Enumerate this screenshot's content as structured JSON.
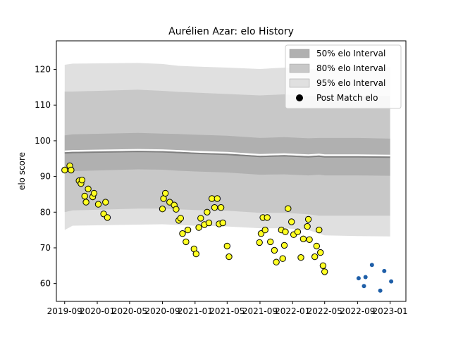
{
  "chart_data": {
    "type": "line",
    "title": "Aurélien Azar: elo History",
    "xlabel": "",
    "ylabel": "elo score",
    "xlim": [
      "2019-08-01",
      "2023-03-01"
    ],
    "ylim": [
      55,
      128
    ],
    "x_ticks": [
      "2019-09",
      "2020-01",
      "2020-05",
      "2020-09",
      "2021-01",
      "2021-05",
      "2021-09",
      "2022-01",
      "2022-05",
      "2022-09",
      "2023-01"
    ],
    "y_ticks": [
      60,
      70,
      80,
      90,
      100,
      110,
      120
    ],
    "grid": false,
    "legend_position": "top-right",
    "legend": [
      {
        "label": "50% elo Interval",
        "color": "#b0b0b0"
      },
      {
        "label": "80% elo Interval",
        "color": "#c8c8c8"
      },
      {
        "label": "95% elo Interval",
        "color": "#e0e0e0"
      },
      {
        "label": "Post Match elo",
        "color": "#000000"
      }
    ],
    "colors": {
      "band50": "#b0b0b0",
      "band80": "#c8c8c8",
      "band95": "#e0e0e0",
      "mean_line": "#808080",
      "post_match_fill": "#ffff22",
      "post_match_edge": "#000000",
      "forecast": "#1f5fa8"
    },
    "intervals": {
      "x": [
        "2019-09-01",
        "2019-10-01",
        "2020-06-01",
        "2020-09-01",
        "2020-11-01",
        "2021-01-01",
        "2021-05-01",
        "2021-09-01",
        "2021-12-01",
        "2022-03-01",
        "2022-04-10",
        "2022-05-01",
        "2022-09-01",
        "2023-01-01"
      ],
      "mean": [
        96.6,
        96.7,
        97.0,
        96.9,
        96.7,
        96.5,
        96.2,
        95.6,
        95.8,
        95.5,
        95.7,
        95.5,
        95.5,
        95.4
      ],
      "p50": [
        [
          91.5,
          101.5
        ],
        [
          91.5,
          101.8
        ],
        [
          92.0,
          102.2
        ],
        [
          91.9,
          102.0
        ],
        [
          91.6,
          101.9
        ],
        [
          91.4,
          101.7
        ],
        [
          91.1,
          101.4
        ],
        [
          90.5,
          100.8
        ],
        [
          90.6,
          101.0
        ],
        [
          90.3,
          100.7
        ],
        [
          90.5,
          100.8
        ],
        [
          90.3,
          100.8
        ],
        [
          90.3,
          100.8
        ],
        [
          90.2,
          100.6
        ]
      ],
      "p80": [
        [
          80.0,
          113.8
        ],
        [
          80.5,
          113.8
        ],
        [
          81.0,
          114.3
        ],
        [
          81.0,
          114.0
        ],
        [
          80.8,
          113.7
        ],
        [
          80.6,
          113.5
        ],
        [
          80.4,
          113.1
        ],
        [
          79.8,
          112.7
        ],
        [
          79.8,
          113.0
        ],
        [
          79.4,
          112.5
        ],
        [
          79.0,
          112.7
        ],
        [
          79.0,
          112.6
        ],
        [
          79.0,
          112.6
        ],
        [
          79.0,
          112.6
        ]
      ],
      "p95": [
        [
          75.0,
          121.3
        ],
        [
          76.2,
          121.6
        ],
        [
          76.5,
          121.8
        ],
        [
          76.6,
          121.5
        ],
        [
          76.4,
          121.0
        ],
        [
          76.2,
          120.8
        ],
        [
          76.0,
          120.5
        ],
        [
          75.5,
          120.1
        ],
        [
          75.5,
          120.5
        ],
        [
          75.0,
          120.0
        ],
        [
          74.0,
          120.3
        ],
        [
          73.5,
          120.5
        ],
        [
          73.3,
          120.5
        ],
        [
          73.2,
          120.6
        ]
      ]
    },
    "series": [
      {
        "kind": "post_match",
        "points": [
          [
            "2019-09-01",
            91.8
          ],
          [
            "2019-09-20",
            93.0
          ],
          [
            "2019-09-25",
            91.8
          ],
          [
            "2019-10-25",
            88.8
          ],
          [
            "2019-11-01",
            88.0
          ],
          [
            "2019-11-05",
            89.0
          ],
          [
            "2019-11-15",
            84.5
          ],
          [
            "2019-11-20",
            82.8
          ],
          [
            "2019-11-28",
            86.5
          ],
          [
            "2019-12-15",
            84.3
          ],
          [
            "2019-12-20",
            85.3
          ],
          [
            "2020-01-05",
            82.2
          ],
          [
            "2020-01-25",
            79.5
          ],
          [
            "2020-02-01",
            82.8
          ],
          [
            "2020-02-08",
            78.5
          ],
          [
            "2020-09-01",
            80.9
          ],
          [
            "2020-09-05",
            83.8
          ],
          [
            "2020-09-12",
            85.3
          ],
          [
            "2020-09-28",
            82.8
          ],
          [
            "2020-10-15",
            82.0
          ],
          [
            "2020-10-22",
            80.8
          ],
          [
            "2020-11-01",
            77.7
          ],
          [
            "2020-11-08",
            78.3
          ],
          [
            "2020-11-15",
            74.0
          ],
          [
            "2020-11-28",
            71.7
          ],
          [
            "2020-12-05",
            75.0
          ],
          [
            "2020-12-28",
            69.7
          ],
          [
            "2021-01-05",
            68.3
          ],
          [
            "2021-01-15",
            75.7
          ],
          [
            "2021-01-22",
            78.3
          ],
          [
            "2021-02-05",
            76.5
          ],
          [
            "2021-02-15",
            80.0
          ],
          [
            "2021-02-22",
            77.0
          ],
          [
            "2021-03-05",
            83.8
          ],
          [
            "2021-03-15",
            81.3
          ],
          [
            "2021-03-25",
            83.8
          ],
          [
            "2021-04-01",
            76.7
          ],
          [
            "2021-04-08",
            81.3
          ],
          [
            "2021-04-15",
            77.0
          ],
          [
            "2021-05-01",
            70.5
          ],
          [
            "2021-05-08",
            67.5
          ],
          [
            "2021-08-30",
            71.5
          ],
          [
            "2021-09-05",
            74.0
          ],
          [
            "2021-09-12",
            78.5
          ],
          [
            "2021-09-20",
            75.0
          ],
          [
            "2021-09-28",
            78.5
          ],
          [
            "2021-10-10",
            71.7
          ],
          [
            "2021-10-25",
            69.3
          ],
          [
            "2021-11-01",
            66.0
          ],
          [
            "2021-11-20",
            75.0
          ],
          [
            "2021-11-25",
            67.0
          ],
          [
            "2021-12-01",
            70.7
          ],
          [
            "2021-12-05",
            74.5
          ],
          [
            "2021-12-15",
            81.0
          ],
          [
            "2021-12-28",
            77.3
          ],
          [
            "2022-01-05",
            73.7
          ],
          [
            "2022-01-20",
            74.5
          ],
          [
            "2022-02-01",
            67.3
          ],
          [
            "2022-02-10",
            72.5
          ],
          [
            "2022-02-25",
            76.0
          ],
          [
            "2022-03-01",
            78.0
          ],
          [
            "2022-03-05",
            72.3
          ],
          [
            "2022-03-25",
            67.5
          ],
          [
            "2022-04-01",
            70.5
          ],
          [
            "2022-04-10",
            75.0
          ],
          [
            "2022-04-15",
            68.7
          ],
          [
            "2022-04-25",
            65.0
          ],
          [
            "2022-05-01",
            63.3
          ]
        ]
      },
      {
        "kind": "forecast",
        "points": [
          [
            "2022-09-05",
            61.5
          ],
          [
            "2022-09-25",
            59.3
          ],
          [
            "2022-10-01",
            61.8
          ],
          [
            "2022-10-25",
            65.2
          ],
          [
            "2022-11-25",
            58.0
          ],
          [
            "2022-12-10",
            63.5
          ],
          [
            "2023-01-05",
            60.6
          ]
        ]
      }
    ]
  }
}
